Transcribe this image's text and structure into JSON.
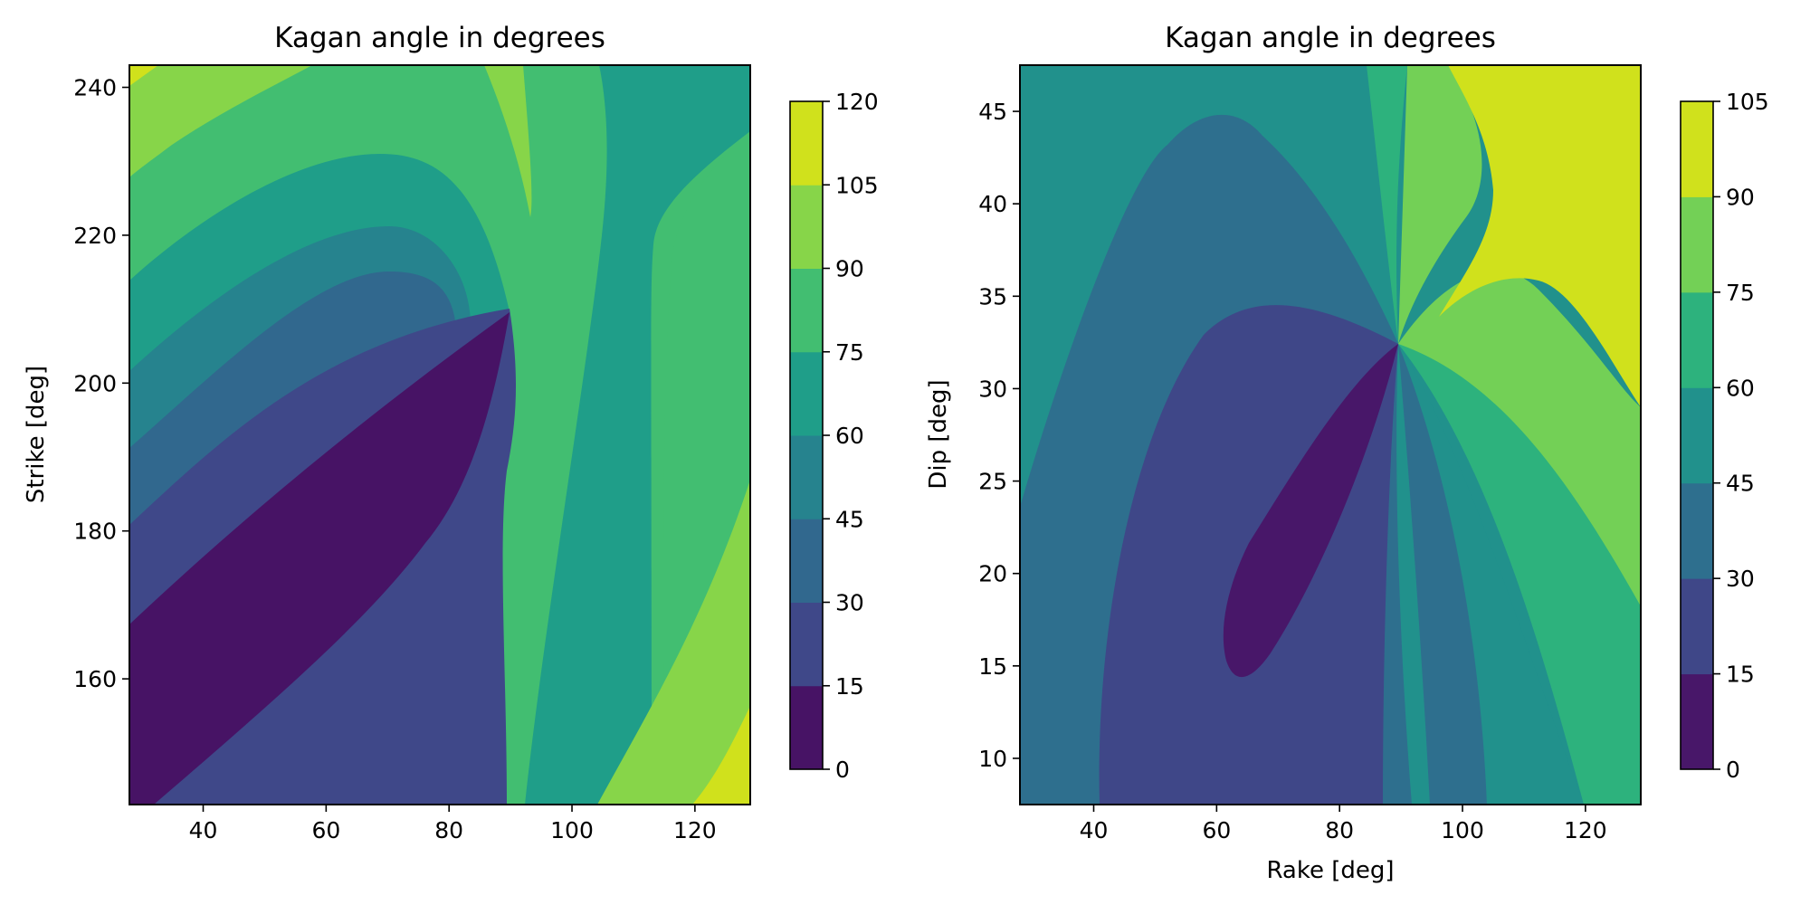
{
  "chart_data": [
    {
      "type": "heatmap",
      "subtype": "filled-contour",
      "title": "Kagan angle in degrees",
      "xlabel": "",
      "ylabel": "Strike [deg]",
      "xlim": [
        28,
        129
      ],
      "ylim": [
        143,
        243
      ],
      "xticks": [
        40,
        60,
        80,
        100,
        120
      ],
      "yticks": [
        160,
        180,
        200,
        220,
        240
      ],
      "colorbar": {
        "levels": [
          0,
          15,
          30,
          45,
          60,
          75,
          90,
          105,
          120
        ]
      },
      "colormap": "viridis",
      "colors": [
        "#471365",
        "#3f4889",
        "#31688e",
        "#26838e",
        "#1f9e89",
        "#42be71",
        "#87d549",
        "#d0e11c"
      ],
      "focal_point": {
        "x": 90,
        "y": 209.5
      }
    },
    {
      "type": "heatmap",
      "subtype": "filled-contour",
      "title": "Kagan angle in degrees",
      "xlabel": "Rake [deg]",
      "ylabel": "Dip [deg]",
      "xlim": [
        28,
        129
      ],
      "ylim": [
        7.5,
        47.5
      ],
      "xticks": [
        40,
        60,
        80,
        100,
        120
      ],
      "yticks": [
        10,
        15,
        20,
        25,
        30,
        35,
        40,
        45
      ],
      "colorbar": {
        "levels": [
          0,
          15,
          30,
          45,
          60,
          75,
          90,
          105
        ]
      },
      "colormap": "viridis",
      "colors": [
        "#481769",
        "#3f4788",
        "#2e6f8e",
        "#21918c",
        "#2db27d",
        "#73d056",
        "#d0e11c"
      ],
      "focal_point": {
        "x": 90,
        "y": 32.5
      }
    }
  ]
}
